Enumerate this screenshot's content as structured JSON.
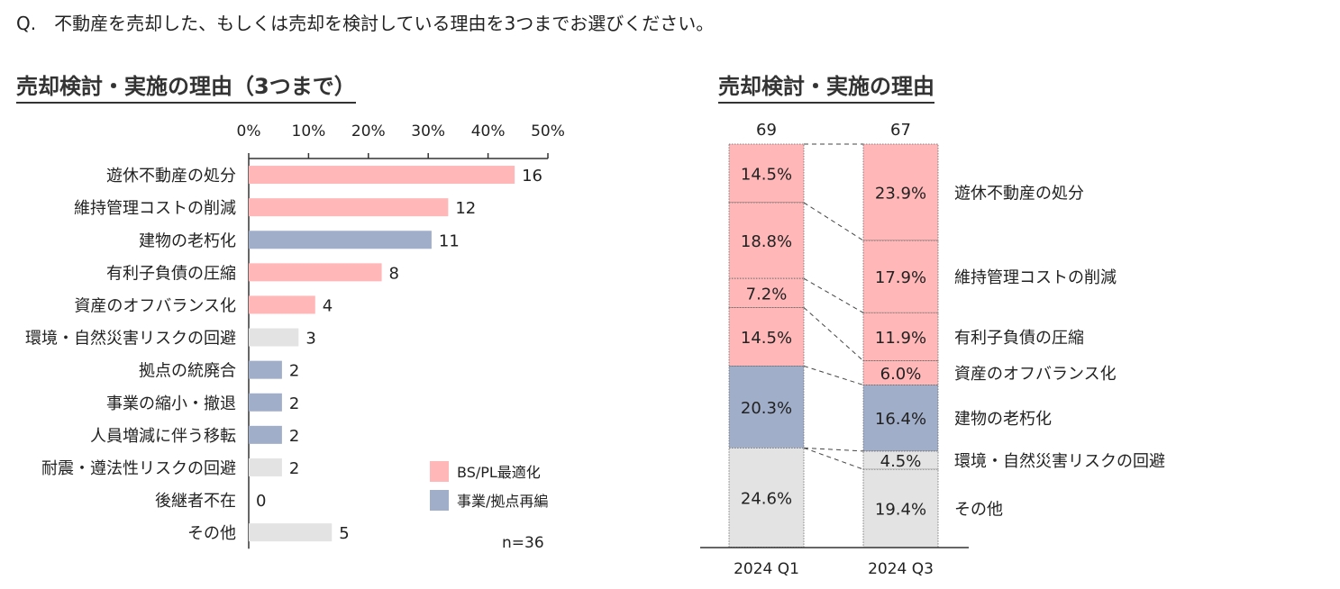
{
  "question": "Q.　不動産を売却した、もしくは売却を検討している理由を3つまでお選びください。",
  "colors": {
    "bs_pl": "#ffb7b8",
    "business": "#a0aec9",
    "other": "#e3e3e3",
    "axis": "#333333",
    "dash": "#444444"
  },
  "chart_data": [
    {
      "type": "bar",
      "orientation": "horizontal",
      "title": "売却検討・実施の理由（3つまで）",
      "xlim": [
        0,
        50
      ],
      "x_ticks": [
        "0%",
        "10%",
        "20%",
        "30%",
        "40%",
        "50%"
      ],
      "x_tick_values": [
        0,
        10,
        20,
        30,
        40,
        50
      ],
      "categories": [
        "遊休不動産の処分",
        "維持管理コストの削減",
        "建物の老朽化",
        "有利子負債の圧縮",
        "資産のオフバランス化",
        "環境・自然災害リスクの回避",
        "拠点の統廃合",
        "事業の縮小・撤退",
        "人員増減に伴う移転",
        "耐震・遵法性リスクの回避",
        "後継者不在",
        "その他"
      ],
      "counts": [
        16,
        12,
        11,
        8,
        4,
        3,
        2,
        2,
        2,
        2,
        0,
        5
      ],
      "groups": [
        "bs_pl",
        "bs_pl",
        "business",
        "bs_pl",
        "bs_pl",
        "other",
        "business",
        "business",
        "business",
        "other",
        "other",
        "other"
      ],
      "total": 36,
      "n_label": "n=36",
      "legend": [
        {
          "key": "bs_pl",
          "label": "BS/PL最適化"
        },
        {
          "key": "business",
          "label": "事業/拠点再編"
        }
      ]
    },
    {
      "type": "bar",
      "stacked": true,
      "normalized": true,
      "title": "売却検討・実施の理由",
      "categories": [
        "2024 Q1",
        "2024 Q3"
      ],
      "totals": [
        "69",
        "67"
      ],
      "series": [
        {
          "name": "遊休不動産の処分",
          "group": "bs_pl",
          "values": [
            14.5,
            23.9
          ],
          "labels": [
            "14.5%",
            "23.9%"
          ]
        },
        {
          "name": "維持管理コストの削減",
          "group": "bs_pl",
          "values": [
            18.8,
            17.9
          ],
          "labels": [
            "18.8%",
            "17.9%"
          ]
        },
        {
          "name": "有利子負債の圧縮",
          "group": "bs_pl",
          "values": [
            7.2,
            11.9
          ],
          "labels": [
            "7.2%",
            "11.9%"
          ]
        },
        {
          "name": "資産のオフバランス化",
          "group": "bs_pl",
          "values": [
            14.5,
            6.0
          ],
          "labels": [
            "14.5%",
            "6.0%"
          ]
        },
        {
          "name": "建物の老朽化",
          "group": "business",
          "values": [
            20.3,
            16.4
          ],
          "labels": [
            "20.3%",
            "16.4%"
          ]
        },
        {
          "name": "環境・自然災害リスクの回避",
          "group": "other",
          "values": [
            0,
            4.5
          ],
          "labels": [
            "",
            "4.5%"
          ]
        },
        {
          "name": "その他",
          "group": "other",
          "values": [
            24.6,
            19.4
          ],
          "labels": [
            "24.6%",
            "19.4%"
          ]
        }
      ]
    }
  ]
}
